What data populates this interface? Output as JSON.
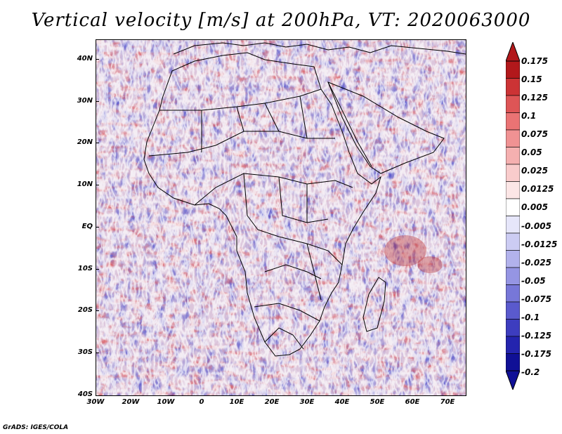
{
  "title": "Vertical velocity [m/s] at 200hPa, VT: 2020063000",
  "credit": "GrADS: IGES/COLA",
  "map": {
    "region": "Africa",
    "lat_range": [
      "40S",
      "45N"
    ],
    "lon_range": [
      "30W",
      "75E"
    ],
    "lat_labels": [
      "40N",
      "30N",
      "20N",
      "10N",
      "EQ",
      "10S",
      "20S",
      "30S",
      "40S"
    ],
    "lon_labels": [
      "30W",
      "20W",
      "10W",
      "0",
      "10E",
      "20E",
      "30E",
      "40E",
      "50E",
      "60E",
      "70E"
    ],
    "background_pattern": "speckled mix of red (rising) and blue (sinking) vertical velocity"
  },
  "colorbar": {
    "labels": [
      "0.175",
      "0.15",
      "0.125",
      "0.1",
      "0.075",
      "0.05",
      "0.025",
      "0.0125",
      "0.005",
      "-0.005",
      "-0.0125",
      "-0.025",
      "-0.05",
      "-0.075",
      "-0.1",
      "-0.125",
      "-0.175",
      "-0.2"
    ],
    "colors": [
      "#b2181b",
      "#cc3335",
      "#de5556",
      "#ea7374",
      "#f09293",
      "#f5b0b0",
      "#f9cccc",
      "#fce6e6",
      "#ffffff",
      "#e6e6fa",
      "#ccccf3",
      "#b2b2ec",
      "#9595e3",
      "#7777d8",
      "#5a5acd",
      "#3d3dbf",
      "#2424ae",
      "#101096"
    ]
  }
}
